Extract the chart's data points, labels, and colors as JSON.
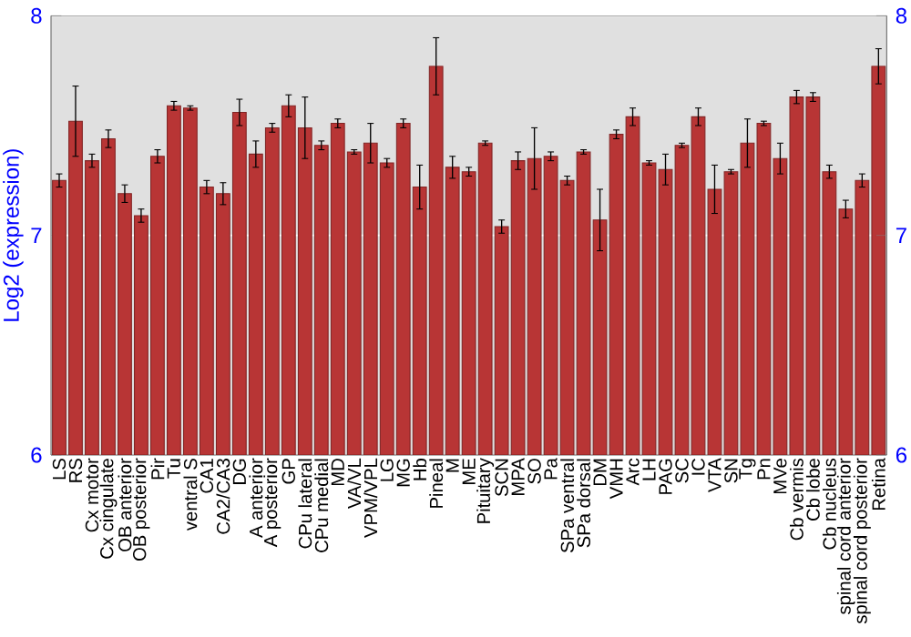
{
  "chart_data": {
    "type": "bar",
    "ylabel": "Log2 (expression)",
    "categories": [
      "LS",
      "RS",
      "Cx motor",
      "Cx cingulate",
      "OB anterior",
      "OB posterior",
      "Pir",
      "Tu",
      "ventral S",
      "CA1",
      "CA2/CA3",
      "DG",
      "A anterior",
      "A posterior",
      "GP",
      "CPu lateral",
      "CPu medial",
      "MD",
      "VA/VL",
      "VPM/VPL",
      "LG",
      "MG",
      "Hb",
      "Pineal",
      "M",
      "ME",
      "Pituitary",
      "SCN",
      "MPA",
      "SO",
      "Pa",
      "SPa ventral",
      "SPa dorsal",
      "DM",
      "VMH",
      "Arc",
      "LH",
      "PAG",
      "SC",
      "IC",
      "VTA",
      "SN",
      "Tg",
      "Pn",
      "MVe",
      "Cb vermis",
      "Cb lobe",
      "Cb nucleus",
      "spinal cord anterior",
      "spinal cord posterior",
      "Retina"
    ],
    "values": [
      7.25,
      7.52,
      7.34,
      7.44,
      7.19,
      7.09,
      7.36,
      7.59,
      7.58,
      7.22,
      7.19,
      7.56,
      7.37,
      7.49,
      7.59,
      7.49,
      7.41,
      7.51,
      7.38,
      7.42,
      7.33,
      7.51,
      7.22,
      7.77,
      7.31,
      7.29,
      7.42,
      7.04,
      7.34,
      7.35,
      7.36,
      7.25,
      7.38,
      7.07,
      7.46,
      7.54,
      7.33,
      7.3,
      7.41,
      7.54,
      7.21,
      7.29,
      7.42,
      7.51,
      7.35,
      7.63,
      7.63,
      7.29,
      7.12,
      7.25,
      7.77
    ],
    "errors": [
      0.03,
      0.16,
      0.03,
      0.04,
      0.04,
      0.03,
      0.03,
      0.02,
      0.01,
      0.03,
      0.05,
      0.06,
      0.06,
      0.02,
      0.05,
      0.14,
      0.02,
      0.02,
      0.01,
      0.09,
      0.02,
      0.02,
      0.1,
      0.13,
      0.05,
      0.02,
      0.01,
      0.03,
      0.04,
      0.14,
      0.02,
      0.02,
      0.01,
      0.14,
      0.02,
      0.04,
      0.01,
      0.07,
      0.01,
      0.04,
      0.11,
      0.01,
      0.11,
      0.01,
      0.07,
      0.03,
      0.02,
      0.03,
      0.04,
      0.03,
      0.08
    ],
    "color": "#b83535",
    "ylim": [
      6,
      8
    ],
    "yticks": [
      6,
      7,
      8
    ],
    "y2lim": [
      6,
      8
    ],
    "y2ticks": [
      6,
      7,
      8
    ],
    "grid": "y"
  }
}
